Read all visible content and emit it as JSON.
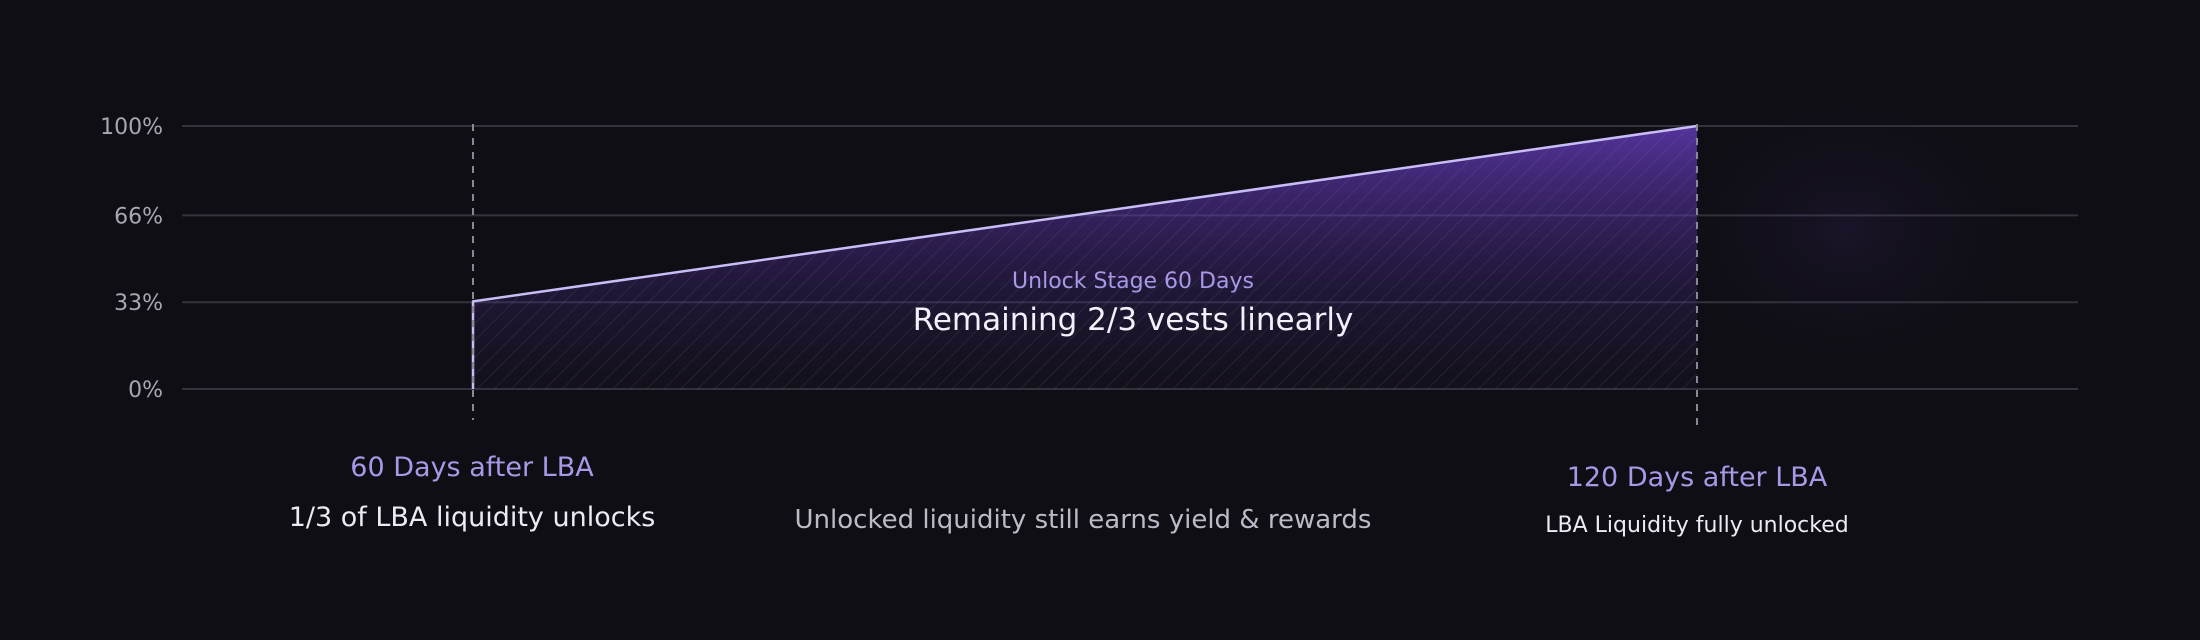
{
  "chart_data": {
    "type": "area",
    "x_unit": "days after LBA",
    "y_unit": "percent",
    "xlim": [
      0,
      150
    ],
    "ylim": [
      0,
      100
    ],
    "y_ticks": [
      {
        "value": 0,
        "label": "0%"
      },
      {
        "value": 33,
        "label": "33%"
      },
      {
        "value": 66,
        "label": "66%"
      },
      {
        "value": 100,
        "label": "100%"
      }
    ],
    "grid": true,
    "x": [
      60,
      120
    ],
    "values": [
      33.3,
      100
    ],
    "stage": {
      "title": "Unlock Stage 60 Days",
      "subtitle": "Remaining 2/3 vests linearly"
    },
    "milestones": [
      {
        "x": 60,
        "title": "60 Days after LBA",
        "description": "1/3 of LBA liquidity unlocks"
      },
      {
        "x": 120,
        "title": "120 Days after LBA",
        "description": "LBA Liquidity fully unlocked"
      }
    ],
    "note": "Unlocked liquidity still earns yield & rewards"
  },
  "colors": {
    "background": "#0f0e14",
    "line": "#c9bdf7",
    "fill": "#6a3fc7",
    "grid": "#34323d",
    "accent_text": "#a898e6"
  }
}
